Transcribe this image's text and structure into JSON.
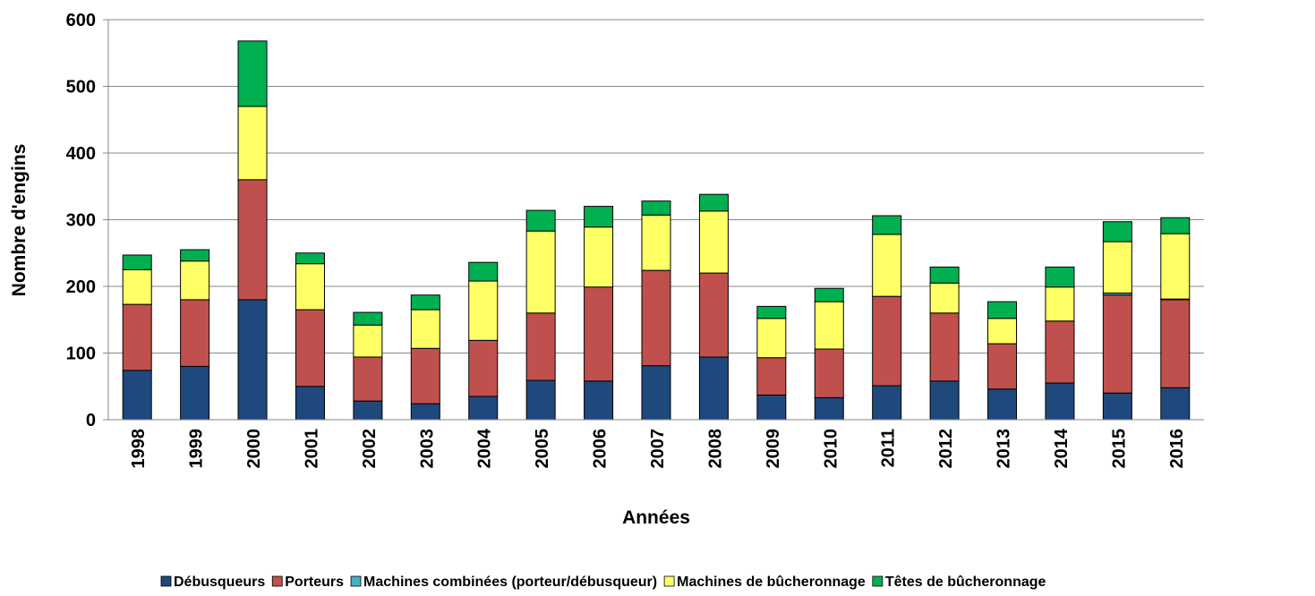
{
  "chart_data": {
    "type": "stacked_bar",
    "xlabel": "Années",
    "ylabel": "Nombre d'engins",
    "categories": [
      "1998",
      "1999",
      "2000",
      "2001",
      "2002",
      "2003",
      "2004",
      "2005",
      "2006",
      "2007",
      "2008",
      "2009",
      "2010",
      "2011",
      "2012",
      "2013",
      "2014",
      "2015",
      "2016"
    ],
    "series": [
      {
        "name": "Débusqueurs",
        "color": "#1f497d",
        "values": [
          74,
          80,
          180,
          50,
          28,
          24,
          35,
          59,
          58,
          81,
          94,
          37,
          33,
          51,
          58,
          46,
          55,
          40,
          48
        ]
      },
      {
        "name": "Porteurs",
        "color": "#c0504d",
        "values": [
          99,
          100,
          180,
          115,
          66,
          83,
          84,
          101,
          141,
          143,
          126,
          56,
          73,
          134,
          102,
          68,
          93,
          147,
          132
        ]
      },
      {
        "name": "Machines combinées (porteur/débusqueur)",
        "color": "#4bacc6",
        "values": [
          0,
          0,
          0,
          0,
          0,
          0,
          0,
          0,
          0,
          0,
          0,
          0,
          0,
          0,
          0,
          0,
          0,
          3,
          1
        ]
      },
      {
        "name": "Machines de bûcheronnage",
        "color": "#ffff66",
        "values": [
          52,
          58,
          110,
          69,
          48,
          58,
          89,
          123,
          90,
          83,
          93,
          59,
          71,
          93,
          45,
          38,
          51,
          77,
          98
        ]
      },
      {
        "name": "Têtes de bûcheronnage",
        "color": "#00b050",
        "values": [
          22,
          17,
          98,
          16,
          19,
          22,
          28,
          31,
          31,
          21,
          25,
          18,
          20,
          28,
          24,
          25,
          30,
          30,
          24
        ]
      }
    ],
    "ylim": [
      0,
      600
    ],
    "yticks": [
      0,
      100,
      200,
      300,
      400,
      500,
      600
    ],
    "grid": true,
    "legend": "bottom"
  }
}
